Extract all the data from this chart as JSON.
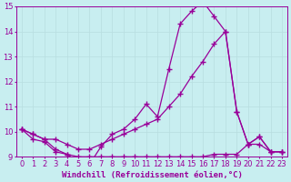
{
  "xlabel": "Windchill (Refroidissement éolien,°C)",
  "bg_color": "#c8eef0",
  "line_color": "#990099",
  "grid_color": "#b8dde0",
  "xmin": -0.5,
  "xmax": 23.5,
  "ymin": 9.0,
  "ymax": 15.0,
  "line1_x": [
    0,
    1,
    2,
    3,
    4,
    5,
    6,
    7,
    8,
    9,
    10,
    11,
    12,
    13,
    14,
    15,
    16,
    17,
    18,
    19,
    20,
    21,
    22,
    23
  ],
  "line1_y": [
    10.1,
    9.9,
    9.7,
    9.3,
    9.1,
    8.8,
    8.7,
    9.4,
    9.9,
    10.1,
    10.5,
    11.1,
    10.6,
    12.5,
    14.3,
    14.8,
    15.2,
    14.6,
    14.0,
    10.8,
    9.5,
    9.8,
    9.2,
    9.2
  ],
  "line2_x": [
    0,
    1,
    2,
    3,
    4,
    5,
    6,
    7,
    8,
    9,
    10,
    11,
    12,
    13,
    14,
    15,
    16,
    17,
    18,
    19,
    20,
    21,
    22,
    23
  ],
  "line2_y": [
    10.1,
    9.9,
    9.7,
    9.7,
    9.5,
    9.3,
    9.3,
    9.5,
    9.7,
    9.9,
    10.1,
    10.3,
    10.5,
    11.0,
    11.5,
    12.2,
    12.8,
    13.5,
    14.0,
    10.8,
    9.5,
    9.8,
    9.2,
    9.2
  ],
  "line3_x": [
    0,
    1,
    2,
    3,
    4,
    5,
    6,
    7,
    8,
    9,
    10,
    11,
    12,
    13,
    14,
    15,
    16,
    17,
    18,
    19,
    20,
    21,
    22,
    23
  ],
  "line3_y": [
    10.1,
    9.7,
    9.6,
    9.2,
    9.1,
    9.0,
    9.0,
    9.0,
    9.0,
    9.0,
    9.0,
    9.0,
    9.0,
    9.0,
    9.0,
    9.0,
    9.0,
    9.1,
    9.1,
    9.1,
    9.5,
    9.5,
    9.2,
    9.2
  ],
  "xticks": [
    0,
    1,
    2,
    3,
    4,
    5,
    6,
    7,
    8,
    9,
    10,
    11,
    12,
    13,
    14,
    15,
    16,
    17,
    18,
    19,
    20,
    21,
    22,
    23
  ],
  "yticks": [
    9,
    10,
    11,
    12,
    13,
    14,
    15
  ],
  "xlabel_fontsize": 6.5,
  "tick_fontsize": 6,
  "marker": "+",
  "markersize": 4,
  "linewidth": 0.9
}
